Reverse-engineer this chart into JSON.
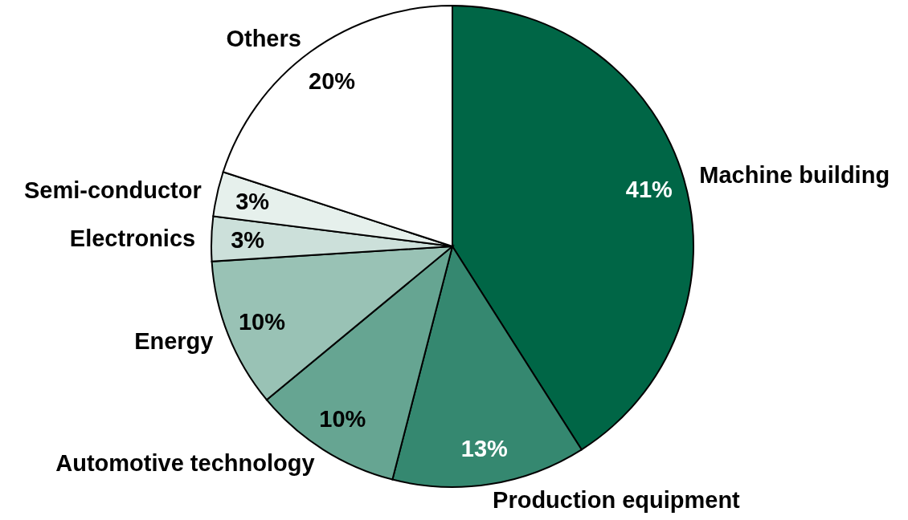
{
  "chart_data": {
    "type": "pie",
    "categories": [
      "Machine building",
      "Production equipment",
      "Automotive technology",
      "Energy",
      "Electronics",
      "Semi-conductor",
      "Others"
    ],
    "values": [
      41,
      13,
      10,
      10,
      3,
      3,
      20
    ],
    "colors": [
      "#006646",
      "#358870",
      "#66a592",
      "#99c2b5",
      "#cce0da",
      "#e6f0ec",
      "#ffffff"
    ],
    "value_labels": [
      "41%",
      "13%",
      "10%",
      "10%",
      "3%",
      "3%",
      "20%"
    ]
  }
}
